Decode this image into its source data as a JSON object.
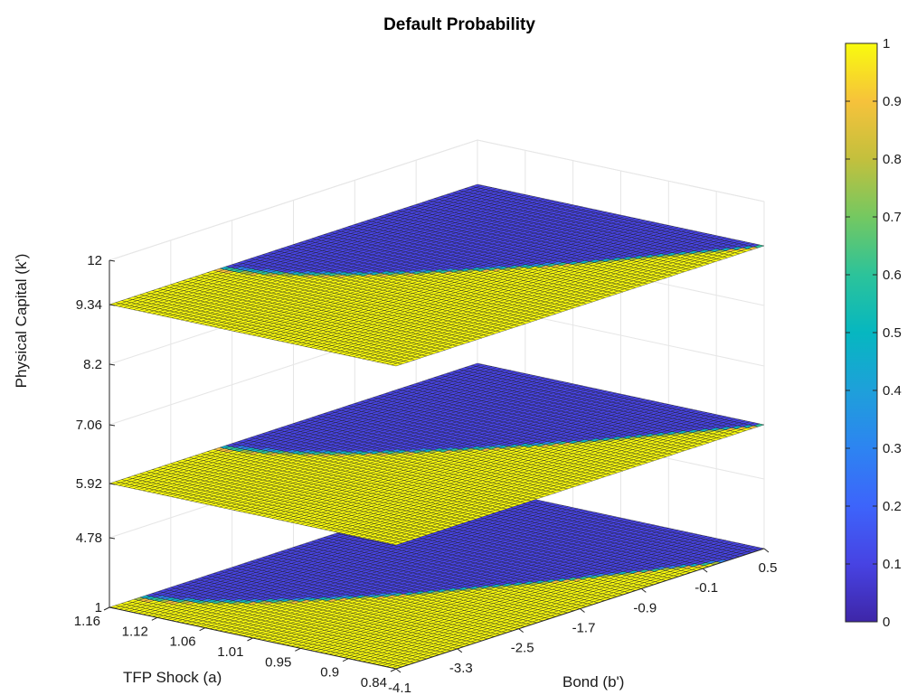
{
  "chart_data": {
    "type": "surface",
    "title": "Default Probability",
    "xlabel": "Bond (b')",
    "ylabel": "TFP Shock (a)",
    "zlabel": "Physical Capital (k')",
    "x_ticks": [
      "-4.1",
      "-3.3",
      "-2.5",
      "-1.7",
      "-0.9",
      "-0.1",
      "0.5"
    ],
    "y_ticks": [
      "0.84",
      "0.9",
      "0.95",
      "1.01",
      "1.06",
      "1.12",
      "1.16"
    ],
    "z_ticks": [
      "1",
      "4.78",
      "5.92",
      "7.06",
      "8.2",
      "9.34",
      "12"
    ],
    "xlim": [
      -4.1,
      0.5
    ],
    "ylim": [
      0.84,
      1.16
    ],
    "slices": [
      {
        "level": "1",
        "threshold_b_at_a_min": 0.0,
        "threshold_b_at_a_max": -3.7
      },
      {
        "level": "5.92",
        "threshold_b_at_a_min": 0.5,
        "threshold_b_at_a_max": -2.7
      },
      {
        "level": "9.34",
        "threshold_b_at_a_min": 0.5,
        "threshold_b_at_a_max": -2.7
      }
    ],
    "value_description": "default probability: 1 below the bond threshold, 0 above it",
    "colorbar": {
      "ticks": [
        "0",
        "0.1",
        "0.2",
        "0.3",
        "0.4",
        "0.5",
        "0.6",
        "0.7",
        "0.8",
        "0.9",
        "1"
      ],
      "range": [
        0,
        1
      ],
      "colormap": "parula",
      "position": "right"
    },
    "grid": true
  }
}
